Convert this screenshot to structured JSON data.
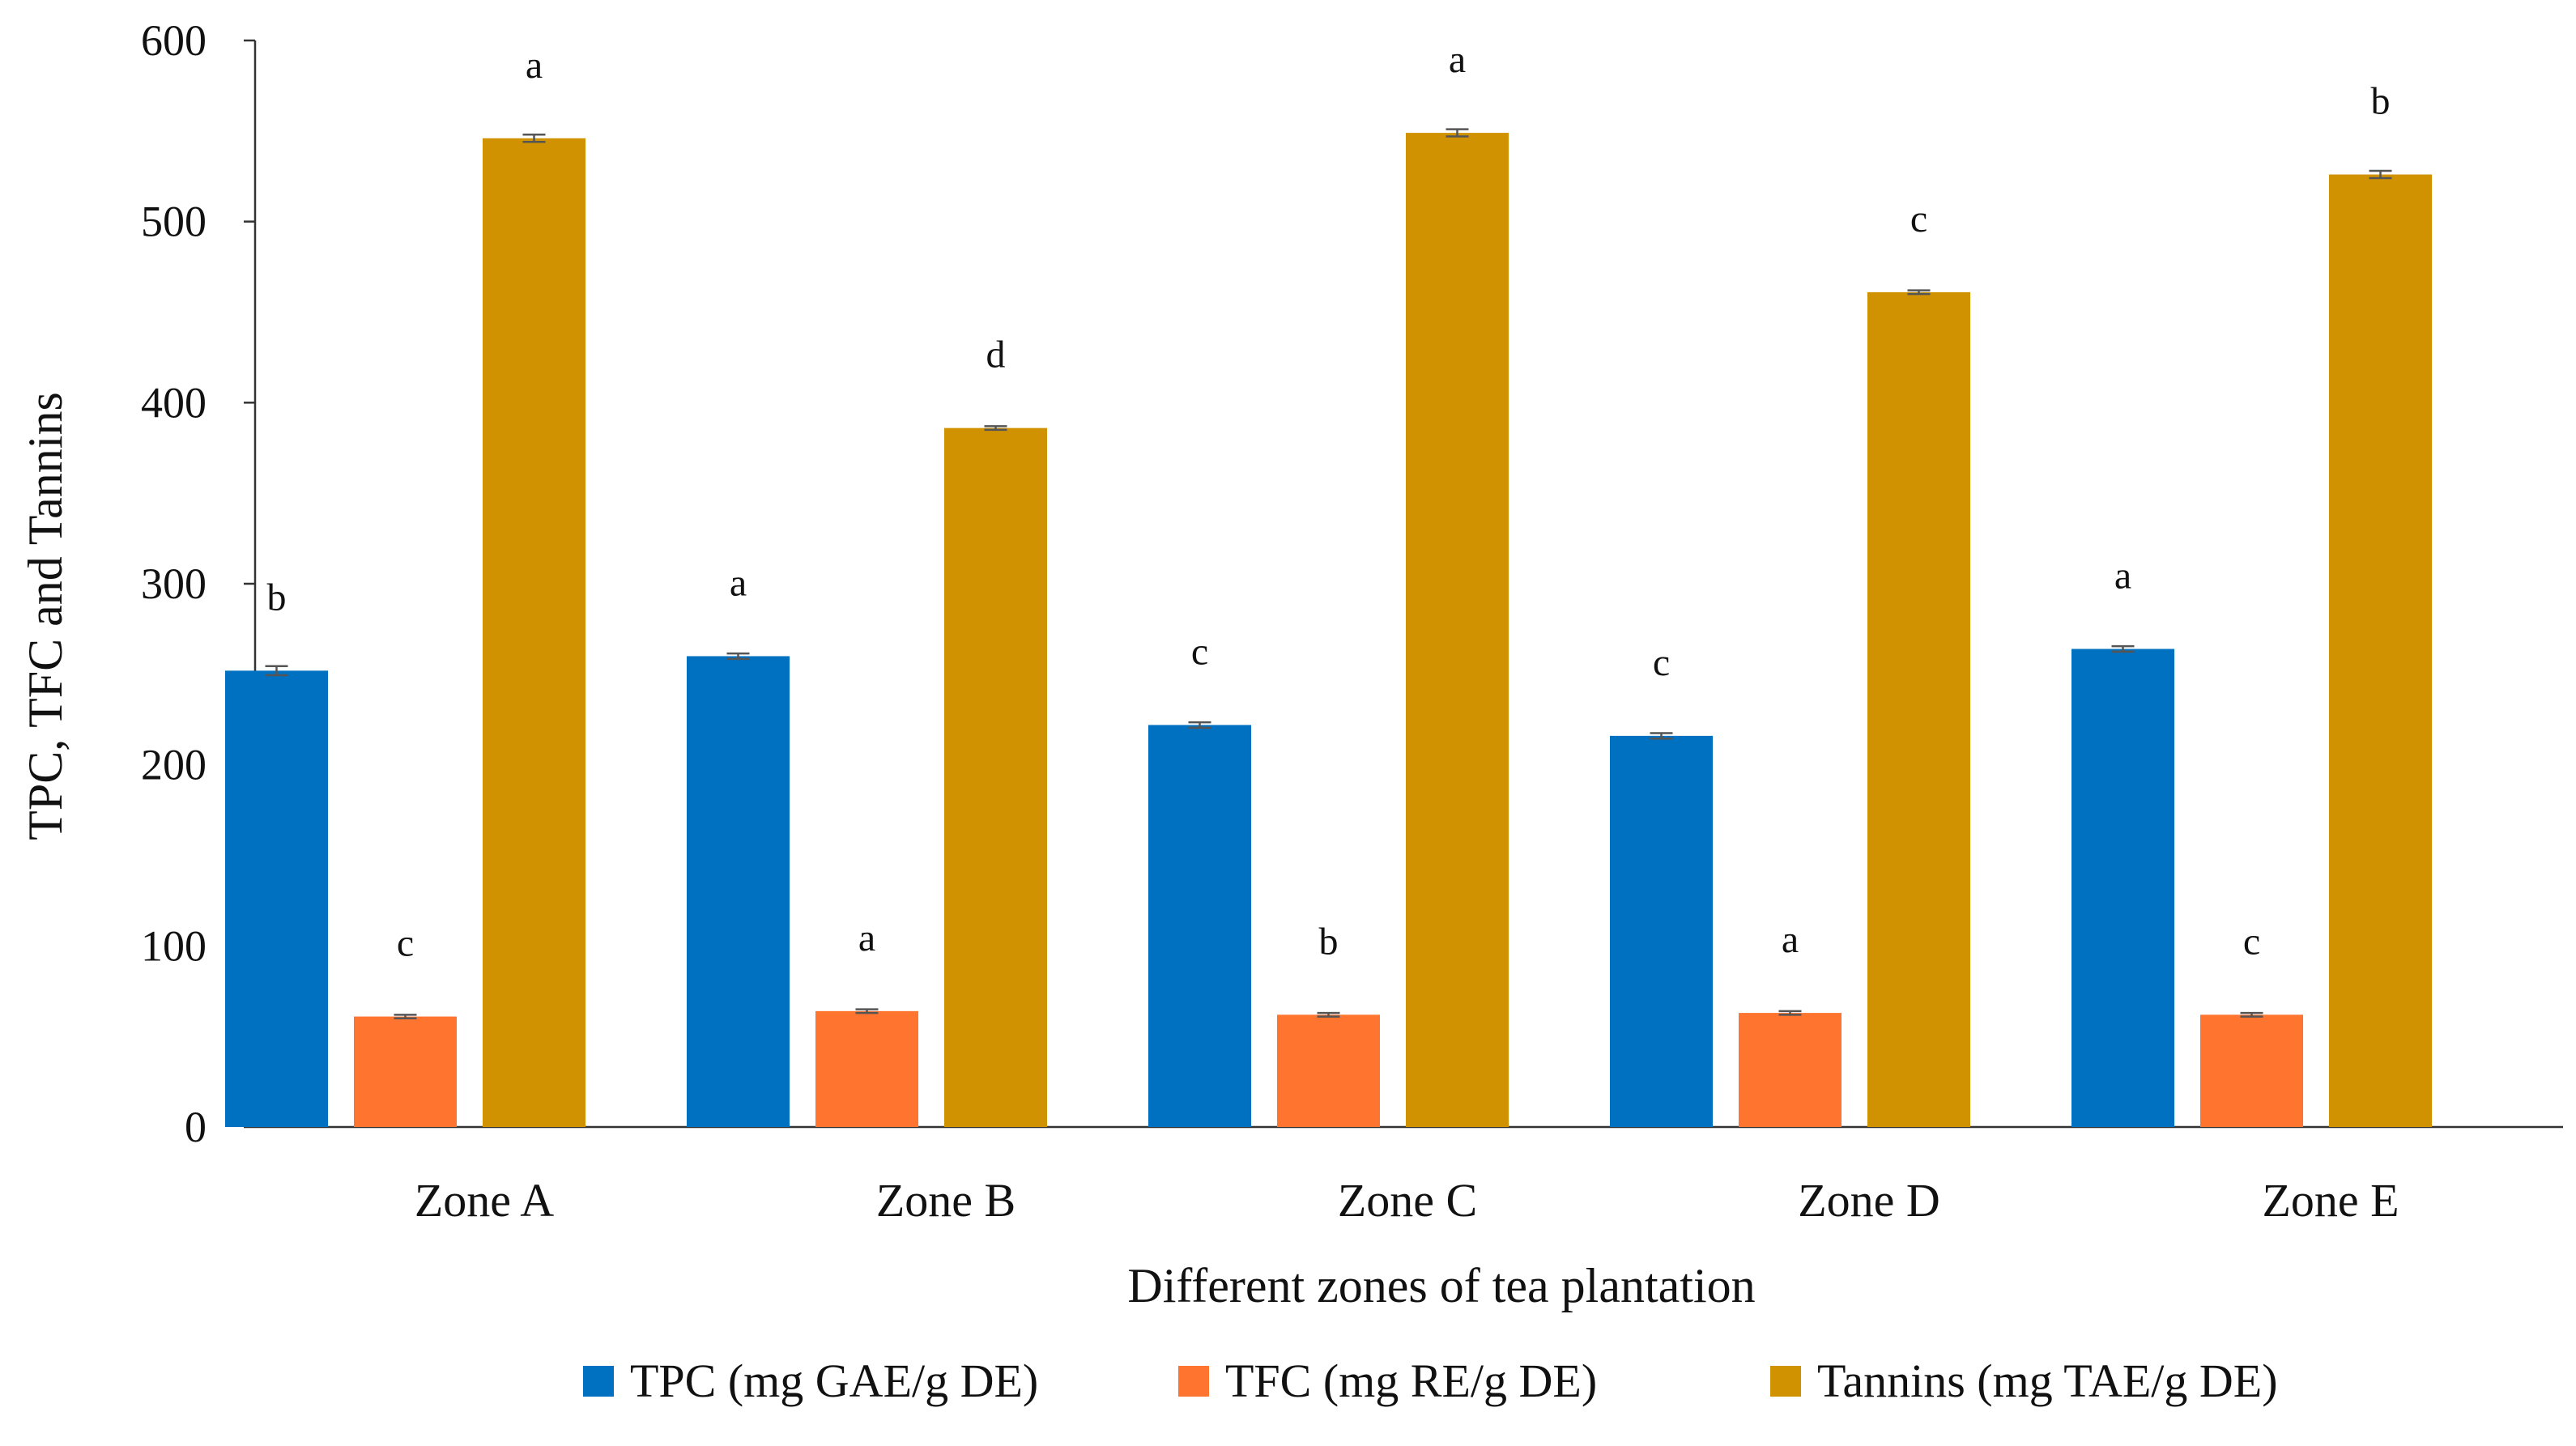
{
  "chart_data": {
    "type": "bar",
    "title": "",
    "xlabel": "Different zones of tea plantation",
    "ylabel": "TPC, TFC and Tannins",
    "ylim": [
      0,
      600
    ],
    "yticks": [
      0,
      100,
      200,
      300,
      400,
      500,
      600
    ],
    "grid": false,
    "legend_position": "bottom",
    "categories": [
      "Zone A",
      "Zone B",
      "Zone C",
      "Zone D",
      "Zone E"
    ],
    "series": [
      {
        "name": "TPC (mg GAE/g DE)",
        "color": "#0070C0",
        "values": [
          252,
          260,
          222,
          216,
          264
        ],
        "errors": [
          2.5,
          1.5,
          1.5,
          1.5,
          1.5
        ],
        "significance": [
          "b",
          "a",
          "c",
          "c",
          "a"
        ]
      },
      {
        "name": "TFC (mg RE/g DE)",
        "color": "#FF7530",
        "values": [
          61,
          64,
          62,
          63,
          62
        ],
        "errors": [
          1,
          1,
          1,
          1,
          1
        ],
        "significance": [
          "c",
          "a",
          "b",
          "a",
          "c"
        ]
      },
      {
        "name": "Tannins (mg TAE/g DE)",
        "color": "#D09200",
        "values": [
          546,
          386,
          549,
          461,
          526
        ],
        "errors": [
          2,
          1,
          2,
          1,
          2
        ],
        "significance": [
          "a",
          "d",
          "a",
          "c",
          "b"
        ]
      }
    ]
  }
}
